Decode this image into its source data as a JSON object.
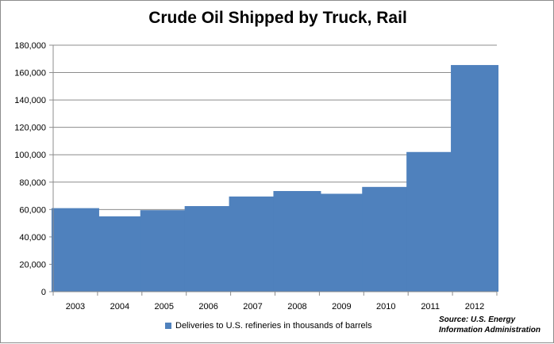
{
  "chart_data": {
    "type": "bar",
    "title": "Crude Oil Shipped by Truck, Rail",
    "categories": [
      "2003",
      "2004",
      "2005",
      "2006",
      "2007",
      "2008",
      "2009",
      "2010",
      "2011",
      "2012"
    ],
    "series": [
      {
        "name": "Deliveries to U.S. refineries in thousands of barrels",
        "values": [
          61000,
          55000,
          59500,
          62500,
          69500,
          73500,
          71500,
          76500,
          102000,
          165500
        ],
        "color": "#4f81bd"
      }
    ],
    "ylim": [
      0,
      180000
    ],
    "yticks": [
      "0",
      "20,000",
      "40,000",
      "60,000",
      "80,000",
      "100,000",
      "120,000",
      "140,000",
      "160,000",
      "180,000"
    ],
    "grid": true,
    "legend_position": "bottom",
    "source_line1": "Source:  U.S. Energy",
    "source_line2": "Information Administration"
  }
}
